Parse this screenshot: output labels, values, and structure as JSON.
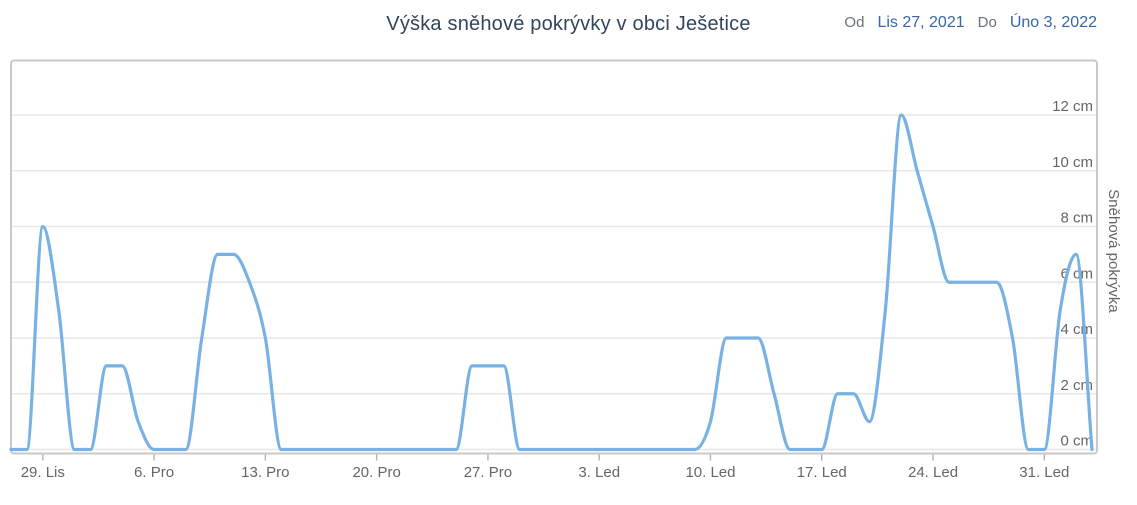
{
  "header": {
    "title": "Výška sněhové pokrývky v obci Ješetice",
    "from_label": "Od",
    "from_date": "Lis 27, 2021",
    "to_label": "Do",
    "to_date": "Úno 3, 2022"
  },
  "colors": {
    "line": "#78b1e4",
    "title_text": "#32465a",
    "range_label_text": "#68737d",
    "range_date_text": "#3566a8",
    "axis_text": "#666666",
    "gridline": "#e7e7e7",
    "plot_border": "#c9c9c9",
    "tick_mark": "#b3b3b3"
  },
  "chart_data": {
    "type": "line",
    "subtype": "smooth-spline",
    "title": "Výška sněhové pokrývky v obci Ješetice",
    "xlabel": "",
    "ylabel": "Sněhová pokrývka",
    "y_unit": "cm",
    "ylim": [
      0,
      12
    ],
    "y_tick_values": [
      0,
      2,
      4,
      6,
      8,
      10,
      12
    ],
    "y_tick_labels": [
      "0 cm",
      "2 cm",
      "4 cm",
      "6 cm",
      "8 cm",
      "10 cm",
      "12 cm"
    ],
    "x_tick_labels": [
      "29. Lis",
      "6. Pro",
      "13. Pro",
      "20. Pro",
      "27. Pro",
      "3. Led",
      "10. Led",
      "17. Led",
      "24. Led",
      "31. Led"
    ],
    "x_tick_day_indices": [
      2,
      9,
      16,
      23,
      30,
      37,
      44,
      51,
      58,
      65
    ],
    "start_date": "2021-11-27",
    "end_date": "2022-02-03",
    "grid": "horizontal-only",
    "legend": "none",
    "series": [
      {
        "name": "Sněhová pokrývka",
        "unit": "cm",
        "values": [
          0,
          0,
          8,
          5,
          0,
          0,
          3,
          3,
          1,
          0,
          0,
          0,
          4,
          7,
          7,
          6,
          4,
          0,
          0,
          0,
          0,
          0,
          0,
          0,
          0,
          0,
          0,
          0,
          0,
          3,
          3,
          3,
          0,
          0,
          0,
          0,
          0,
          0,
          0,
          0,
          0,
          0,
          0,
          0,
          1,
          4,
          4,
          4,
          2,
          0,
          0,
          0,
          2,
          2,
          1,
          5,
          12,
          10,
          8,
          6,
          6,
          6,
          6,
          4,
          0,
          0,
          5,
          7,
          0
        ]
      }
    ]
  }
}
